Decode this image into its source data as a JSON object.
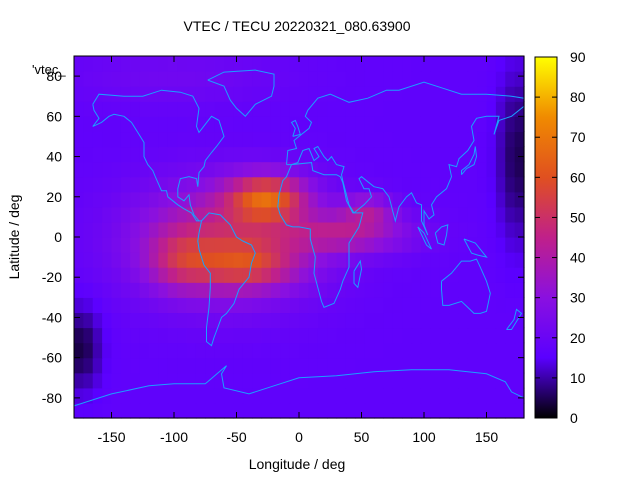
{
  "chart_data": {
    "type": "heatmap",
    "title": "VTEC / TECU 20220321_080.63900",
    "xlabel": "Longitude / deg",
    "ylabel": "Latitude / deg",
    "series_label": "'vtec_",
    "xlim": [
      -180,
      180
    ],
    "ylim": [
      -90,
      90
    ],
    "x_ticks": [
      -150,
      -100,
      -50,
      0,
      50,
      100,
      150
    ],
    "y_ticks": [
      -80,
      -60,
      -40,
      -20,
      0,
      20,
      40,
      60,
      80
    ],
    "colorbar": {
      "min": 0,
      "max": 90,
      "ticks": [
        0,
        10,
        20,
        30,
        40,
        50,
        60,
        70,
        80,
        90
      ],
      "palette": [
        "#000000",
        "#5a00ff",
        "#8a10e0",
        "#c0208a",
        "#e05020",
        "#f08a00",
        "#ffff00"
      ]
    },
    "grid_step_deg": 7.5,
    "field": {
      "background": 17,
      "features": [
        {
          "kind": "equatorial-anomaly",
          "center_lon": -60,
          "center_lat": -2,
          "sigma_lon": 50,
          "sigma_lat": 20,
          "amplitude": 30
        },
        {
          "kind": "crest-north",
          "center_lon": -25,
          "center_lat": 20,
          "sigma_lon": 22,
          "sigma_lat": 8,
          "amplitude": 38
        },
        {
          "kind": "crest-south",
          "center_lon": -40,
          "center_lat": -14,
          "sigma_lon": 28,
          "sigma_lat": 8,
          "amplitude": 20
        },
        {
          "kind": "crest-south-west",
          "center_lon": -95,
          "center_lat": -12,
          "sigma_lon": 18,
          "sigma_lat": 10,
          "amplitude": 15
        },
        {
          "kind": "tongue-east",
          "center_lon": 40,
          "center_lat": 2,
          "sigma_lon": 35,
          "sigma_lat": 7,
          "amplitude": 22
        },
        {
          "kind": "tongue-east-north",
          "center_lon": 55,
          "center_lat": 14,
          "sigma_lon": 15,
          "sigma_lat": 5,
          "amplitude": 18
        },
        {
          "kind": "polar-low-north-east",
          "center_lon": 175,
          "center_lat": 40,
          "sigma_lon": 12,
          "sigma_lat": 30,
          "amplitude": -12
        },
        {
          "kind": "polar-low-south-west",
          "center_lon": -175,
          "center_lat": -55,
          "sigma_lon": 12,
          "sigma_lat": 15,
          "amplitude": -13
        },
        {
          "kind": "high-lat-enhancement",
          "center_lon": -100,
          "center_lat": 80,
          "sigma_lon": 60,
          "sigma_lat": 10,
          "amplitude": 5
        }
      ]
    },
    "coastlines": [
      {
        "name": "north-america",
        "lonlat": [
          [
            -165,
            66
          ],
          [
            -160,
            71
          ],
          [
            -140,
            70
          ],
          [
            -125,
            70
          ],
          [
            -110,
            73
          ],
          [
            -95,
            72
          ],
          [
            -85,
            70
          ],
          [
            -80,
            64
          ],
          [
            -82,
            55
          ],
          [
            -80,
            52
          ],
          [
            -70,
            60
          ],
          [
            -64,
            58
          ],
          [
            -60,
            50
          ],
          [
            -66,
            45
          ],
          [
            -70,
            42
          ],
          [
            -75,
            38
          ],
          [
            -76,
            35
          ],
          [
            -80,
            32
          ],
          [
            -81,
            25
          ],
          [
            -82,
            29
          ],
          [
            -88,
            30
          ],
          [
            -95,
            29
          ],
          [
            -97,
            24
          ],
          [
            -97,
            20
          ],
          [
            -92,
            18
          ],
          [
            -88,
            21
          ],
          [
            -87,
            16
          ],
          [
            -84,
            11
          ],
          [
            -80,
            8
          ],
          [
            -78,
            8
          ],
          [
            -82,
            8
          ],
          [
            -86,
            12
          ],
          [
            -92,
            14
          ],
          [
            -97,
            16
          ],
          [
            -105,
            20
          ],
          [
            -106,
            23
          ],
          [
            -110,
            23
          ],
          [
            -115,
            30
          ],
          [
            -117,
            33
          ],
          [
            -121,
            36
          ],
          [
            -124,
            40
          ],
          [
            -124,
            47
          ],
          [
            -128,
            51
          ],
          [
            -134,
            57
          ],
          [
            -140,
            60
          ],
          [
            -148,
            61
          ],
          [
            -152,
            60
          ],
          [
            -158,
            57
          ],
          [
            -165,
            55
          ],
          [
            -160,
            59
          ],
          [
            -164,
            63
          ],
          [
            -165,
            66
          ]
        ]
      },
      {
        "name": "greenland",
        "lonlat": [
          [
            -73,
            78
          ],
          [
            -60,
            82
          ],
          [
            -35,
            83
          ],
          [
            -20,
            81
          ],
          [
            -20,
            75
          ],
          [
            -22,
            70
          ],
          [
            -35,
            66
          ],
          [
            -43,
            60
          ],
          [
            -50,
            64
          ],
          [
            -55,
            68
          ],
          [
            -60,
            75
          ],
          [
            -73,
            78
          ]
        ]
      },
      {
        "name": "south-america",
        "lonlat": [
          [
            -78,
            8
          ],
          [
            -72,
            12
          ],
          [
            -63,
            11
          ],
          [
            -55,
            6
          ],
          [
            -50,
            0
          ],
          [
            -45,
            -2
          ],
          [
            -38,
            -4
          ],
          [
            -35,
            -8
          ],
          [
            -38,
            -13
          ],
          [
            -40,
            -20
          ],
          [
            -48,
            -26
          ],
          [
            -52,
            -33
          ],
          [
            -58,
            -38
          ],
          [
            -62,
            -40
          ],
          [
            -65,
            -45
          ],
          [
            -68,
            -50
          ],
          [
            -70,
            -54
          ],
          [
            -74,
            -52
          ],
          [
            -74,
            -45
          ],
          [
            -72,
            -35
          ],
          [
            -71,
            -25
          ],
          [
            -71,
            -18
          ],
          [
            -76,
            -14
          ],
          [
            -80,
            -6
          ],
          [
            -81,
            -2
          ],
          [
            -80,
            2
          ],
          [
            -78,
            8
          ]
        ]
      },
      {
        "name": "eurasia",
        "lonlat": [
          [
            -10,
            36
          ],
          [
            -9,
            43
          ],
          [
            -2,
            44
          ],
          [
            -4,
            48
          ],
          [
            2,
            51
          ],
          [
            8,
            54
          ],
          [
            10,
            57
          ],
          [
            5,
            60
          ],
          [
            7,
            63
          ],
          [
            15,
            69
          ],
          [
            25,
            71
          ],
          [
            40,
            67
          ],
          [
            55,
            69
          ],
          [
            70,
            73
          ],
          [
            80,
            73
          ],
          [
            100,
            77
          ],
          [
            115,
            74
          ],
          [
            130,
            71
          ],
          [
            150,
            71
          ],
          [
            170,
            70
          ],
          [
            180,
            69
          ],
          [
            180,
            65
          ],
          [
            170,
            60
          ],
          [
            160,
            58
          ],
          [
            156,
            51
          ],
          [
            160,
            60
          ],
          [
            150,
            60
          ],
          [
            142,
            59
          ],
          [
            138,
            55
          ],
          [
            140,
            48
          ],
          [
            135,
            43
          ],
          [
            128,
            39
          ],
          [
            126,
            35
          ],
          [
            120,
            36
          ],
          [
            122,
            30
          ],
          [
            118,
            24
          ],
          [
            110,
            20
          ],
          [
            106,
            16
          ],
          [
            108,
            11
          ],
          [
            104,
            9
          ],
          [
            100,
            13
          ],
          [
            100,
            6
          ],
          [
            103,
            1
          ],
          [
            98,
            8
          ],
          [
            98,
            16
          ],
          [
            94,
            17
          ],
          [
            90,
            22
          ],
          [
            86,
            20
          ],
          [
            80,
            15
          ],
          [
            77,
            8
          ],
          [
            72,
            20
          ],
          [
            67,
            24
          ],
          [
            60,
            25
          ],
          [
            56,
            27
          ],
          [
            50,
            30
          ],
          [
            48,
            29
          ],
          [
            52,
            24
          ],
          [
            56,
            24
          ],
          [
            58,
            20
          ],
          [
            52,
            16
          ],
          [
            44,
            12
          ],
          [
            40,
            16
          ],
          [
            35,
            28
          ],
          [
            34,
            31
          ],
          [
            36,
            35
          ],
          [
            30,
            36
          ],
          [
            26,
            40
          ],
          [
            23,
            38
          ],
          [
            20,
            40
          ],
          [
            15,
            45
          ],
          [
            12,
            44
          ],
          [
            16,
            40
          ],
          [
            12,
            38
          ],
          [
            8,
            44
          ],
          [
            3,
            43
          ],
          [
            -1,
            37
          ],
          [
            -6,
            36
          ],
          [
            -10,
            36
          ]
        ]
      },
      {
        "name": "africa",
        "lonlat": [
          [
            -6,
            36
          ],
          [
            10,
            37
          ],
          [
            11,
            33
          ],
          [
            20,
            31
          ],
          [
            30,
            31
          ],
          [
            33,
            30
          ],
          [
            35,
            27
          ],
          [
            38,
            18
          ],
          [
            43,
            12
          ],
          [
            51,
            12
          ],
          [
            48,
            5
          ],
          [
            40,
            -3
          ],
          [
            40,
            -15
          ],
          [
            35,
            -22
          ],
          [
            33,
            -26
          ],
          [
            28,
            -33
          ],
          [
            20,
            -35
          ],
          [
            18,
            -32
          ],
          [
            12,
            -18
          ],
          [
            13,
            -10
          ],
          [
            9,
            -1
          ],
          [
            9,
            4
          ],
          [
            0,
            5
          ],
          [
            -5,
            5
          ],
          [
            -10,
            6
          ],
          [
            -15,
            11
          ],
          [
            -17,
            15
          ],
          [
            -16,
            21
          ],
          [
            -13,
            28
          ],
          [
            -10,
            30
          ],
          [
            -6,
            36
          ]
        ]
      },
      {
        "name": "australia",
        "lonlat": [
          [
            114,
            -22
          ],
          [
            122,
            -18
          ],
          [
            130,
            -12
          ],
          [
            137,
            -12
          ],
          [
            142,
            -11
          ],
          [
            145,
            -15
          ],
          [
            150,
            -22
          ],
          [
            153,
            -28
          ],
          [
            150,
            -37
          ],
          [
            145,
            -38
          ],
          [
            140,
            -38
          ],
          [
            135,
            -35
          ],
          [
            130,
            -32
          ],
          [
            120,
            -34
          ],
          [
            115,
            -34
          ],
          [
            114,
            -26
          ],
          [
            114,
            -22
          ]
        ]
      },
      {
        "name": "madagascar",
        "lonlat": [
          [
            44,
            -17
          ],
          [
            49,
            -12
          ],
          [
            50,
            -16
          ],
          [
            47,
            -25
          ],
          [
            44,
            -23
          ],
          [
            44,
            -17
          ]
        ]
      },
      {
        "name": "new-zealand",
        "lonlat": [
          [
            166,
            -46
          ],
          [
            172,
            -41
          ],
          [
            174,
            -36
          ],
          [
            178,
            -38
          ],
          [
            174,
            -42
          ],
          [
            170,
            -46
          ],
          [
            166,
            -46
          ]
        ]
      },
      {
        "name": "japan",
        "lonlat": [
          [
            130,
            31
          ],
          [
            134,
            34
          ],
          [
            140,
            36
          ],
          [
            142,
            40
          ],
          [
            141,
            45
          ],
          [
            140,
            41
          ],
          [
            136,
            36
          ],
          [
            130,
            33
          ],
          [
            130,
            31
          ]
        ]
      },
      {
        "name": "uk",
        "lonlat": [
          [
            -5,
            50
          ],
          [
            1,
            51
          ],
          [
            -1,
            55
          ],
          [
            -3,
            58
          ],
          [
            -6,
            57
          ],
          [
            -3,
            54
          ],
          [
            -5,
            50
          ]
        ]
      },
      {
        "name": "borneo",
        "lonlat": [
          [
            109,
            2
          ],
          [
            114,
            5
          ],
          [
            119,
            6
          ],
          [
            118,
            1
          ],
          [
            116,
            -4
          ],
          [
            111,
            -3
          ],
          [
            109,
            2
          ]
        ]
      },
      {
        "name": "sumatra",
        "lonlat": [
          [
            95,
            5
          ],
          [
            100,
            2
          ],
          [
            106,
            -6
          ],
          [
            102,
            -4
          ],
          [
            95,
            5
          ]
        ]
      },
      {
        "name": "new-guinea",
        "lonlat": [
          [
            132,
            -1
          ],
          [
            141,
            -3
          ],
          [
            150,
            -10
          ],
          [
            143,
            -9
          ],
          [
            138,
            -8
          ],
          [
            132,
            -1
          ]
        ]
      },
      {
        "name": "antarctica",
        "lonlat": [
          [
            -180,
            -84
          ],
          [
            -150,
            -78
          ],
          [
            -120,
            -74
          ],
          [
            -100,
            -73
          ],
          [
            -75,
            -73
          ],
          [
            -60,
            -65
          ],
          [
            -58,
            -64
          ],
          [
            -62,
            -68
          ],
          [
            -60,
            -75
          ],
          [
            -40,
            -78
          ],
          [
            -20,
            -74
          ],
          [
            0,
            -70
          ],
          [
            30,
            -69
          ],
          [
            60,
            -67
          ],
          [
            90,
            -66
          ],
          [
            120,
            -66
          ],
          [
            150,
            -68
          ],
          [
            165,
            -72
          ],
          [
            170,
            -77
          ],
          [
            180,
            -80
          ]
        ]
      }
    ]
  }
}
